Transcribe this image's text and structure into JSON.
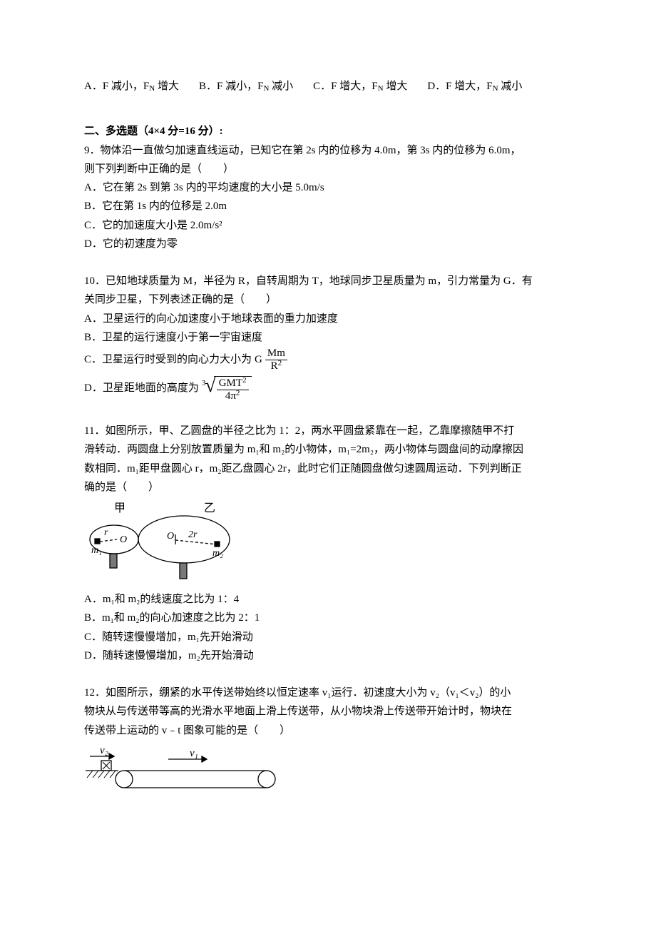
{
  "topline": {
    "options": [
      "A．F 减小，F<sub>N</sub> 增大",
      "B．F 减小，F<sub>N</sub> 减小",
      "C．F 增大，F<sub>N</sub> 增大",
      "D．F 增大，F<sub>N</sub> 减小"
    ]
  },
  "section2_header": "二、多选题（4&#215;4 分=16 分）:",
  "q9": {
    "stem1": "9．物体沿一直做匀加速直线运动，已知它在第 2s 内的位移为 4.0m，第 3s 内的位移为 6.0m，",
    "stem2": "则下列判断中正确的是（　　）",
    "opts": [
      "A．它在第 2s 到第 3s 内的平均速度的大小是 5.0m/s",
      "B．它在第 1s 内的位移是 2.0m",
      "C．它的加速度大小是 2.0m/s²",
      "D．它的初速度为零"
    ]
  },
  "q10": {
    "stem1": "10．已知地球质量为 M，半径为 R，自转周期为 T，地球同步卫星质量为 m，引力常量为 G．有",
    "stem2": "关同步卫星，下列表述正确的是（　　）",
    "optA": "A．卫星运行的向心加速度小于地球表面的重力加速度",
    "optB": "B．卫星的运行速度小于第一宇宙速度",
    "optC_lead": "C．卫星运行时受到的向心力大小为",
    "optC_G": "G",
    "optC_num": "Mm",
    "optC_den": "R",
    "optD_lead": "D．卫星距地面的高度为",
    "optD_deg": "3",
    "optD_num": "GMT",
    "optD_numexp": "2",
    "optD_den": "4π",
    "optD_denexp": "2"
  },
  "q11": {
    "stem1": "11．如图所示，甲、乙圆盘的半径之比为 1：2，两水平圆盘紧靠在一起，乙靠摩擦随甲不打",
    "stem2": "滑转动．两圆盘上分别放置质量为 m₁和 m₂的小物体，m₁=2m₂，两小物体与圆盘间的动摩擦因",
    "stem3": "数相同．m₁距甲盘圆心 r，m₂距乙盘圆心 2r，此时它们正随圆盘做匀速圆周运动．下列判断正",
    "stem4": "确的是（　　）",
    "fig": {
      "jia": "甲",
      "yi": "乙",
      "O": "O",
      "r": "r",
      "tworr": "2r",
      "m1": "m₁",
      "m2": "m₂"
    },
    "opts": [
      "A．m₁和 m₂的线速度之比为 1：4",
      "B．m₁和 m₂的向心加速度之比为 2：1",
      "C．随转速慢慢增加，m₁先开始滑动",
      "D．随转速慢慢增加，m₂先开始滑动"
    ]
  },
  "q12": {
    "stem1": "12．如图所示，绷紧的水平传送带始终以恒定速率 v₁运行．初速度大小为 v₂（v₁＜v₂）的小",
    "stem2": "物块从与传送带等高的光滑水平地面上滑上传送带，从小物块滑上传送带开始计时，物块在",
    "stem3": "传送带上运动的 v﹣t 图象可能的是（　　）",
    "fig": {
      "v1": "v₁",
      "v2": "v₂"
    }
  }
}
